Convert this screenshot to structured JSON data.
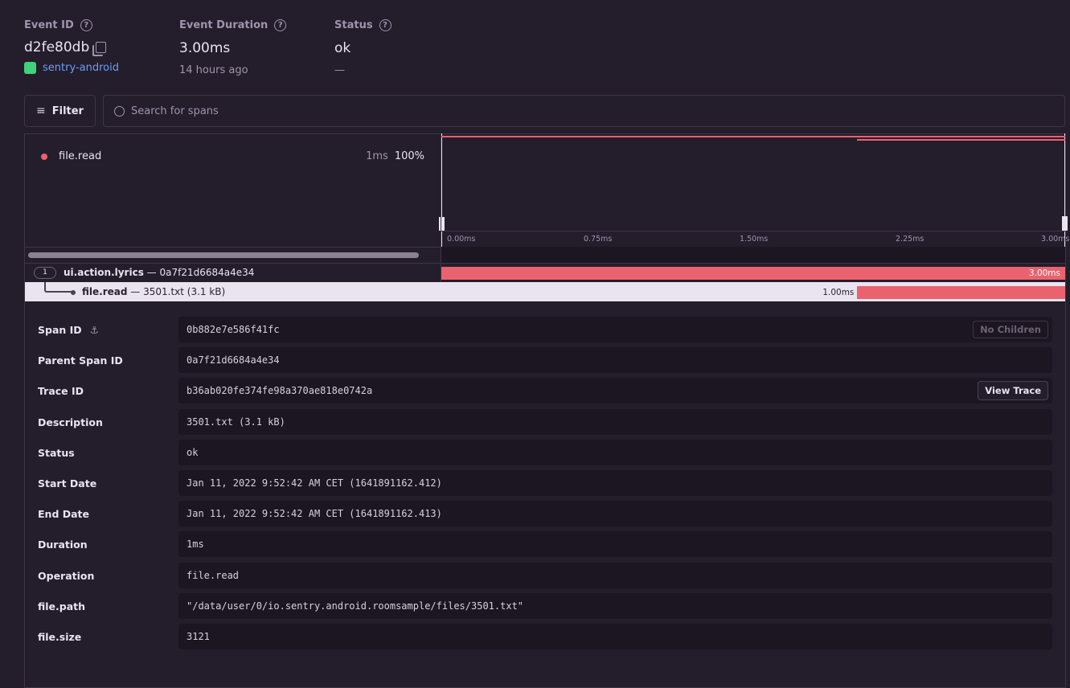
{
  "header": {
    "event_id": {
      "label": "Event ID",
      "value": "d2fe80db",
      "project": "sentry-android"
    },
    "duration": {
      "label": "Event Duration",
      "value": "3.00ms",
      "sub": "14 hours ago"
    },
    "status": {
      "label": "Status",
      "value": "ok",
      "sub": "—"
    }
  },
  "toolbar": {
    "filter_label": "Filter",
    "search_placeholder": "Search for spans"
  },
  "minimap": {
    "legend": [
      {
        "op": "file.read",
        "duration": "1ms",
        "percent": "100%",
        "color": "#e9626e"
      }
    ],
    "ticks": [
      "0.00ms",
      "0.75ms",
      "1.50ms",
      "2.25ms",
      "3.00ms"
    ]
  },
  "spans": [
    {
      "count": "1",
      "op": "ui.action.lyrics",
      "desc": "0a7f21d6684a4e34",
      "duration": "3.00ms",
      "start": 0,
      "end": 3.0
    },
    {
      "op": "file.read",
      "desc": "3501.txt (3.1 kB)",
      "duration": "1.00ms",
      "start": 2.0,
      "end": 3.0
    }
  ],
  "axis_max_ms": 3.0,
  "details": {
    "no_children": "No Children",
    "view_trace": "View Trace",
    "rows": [
      {
        "label": "Span ID",
        "value": "0b882e7e586f41fc"
      },
      {
        "label": "Parent Span ID",
        "value": "0a7f21d6684a4e34"
      },
      {
        "label": "Trace ID",
        "value": "b36ab020fe374fe98a370ae818e0742a"
      },
      {
        "label": "Description",
        "value": "3501.txt (3.1 kB)"
      },
      {
        "label": "Status",
        "value": "ok"
      },
      {
        "label": "Start Date",
        "value": "Jan 11, 2022 9:52:42 AM CET (1641891162.412)"
      },
      {
        "label": "End Date",
        "value": "Jan 11, 2022 9:52:42 AM CET (1641891162.413)"
      },
      {
        "label": "Duration",
        "value": "1ms"
      },
      {
        "label": "Operation",
        "value": "file.read"
      },
      {
        "label": "file.path",
        "value": "\"/data/user/0/io.sentry.android.roomsample/files/3501.txt\""
      },
      {
        "label": "file.size",
        "value": "3121"
      }
    ]
  }
}
